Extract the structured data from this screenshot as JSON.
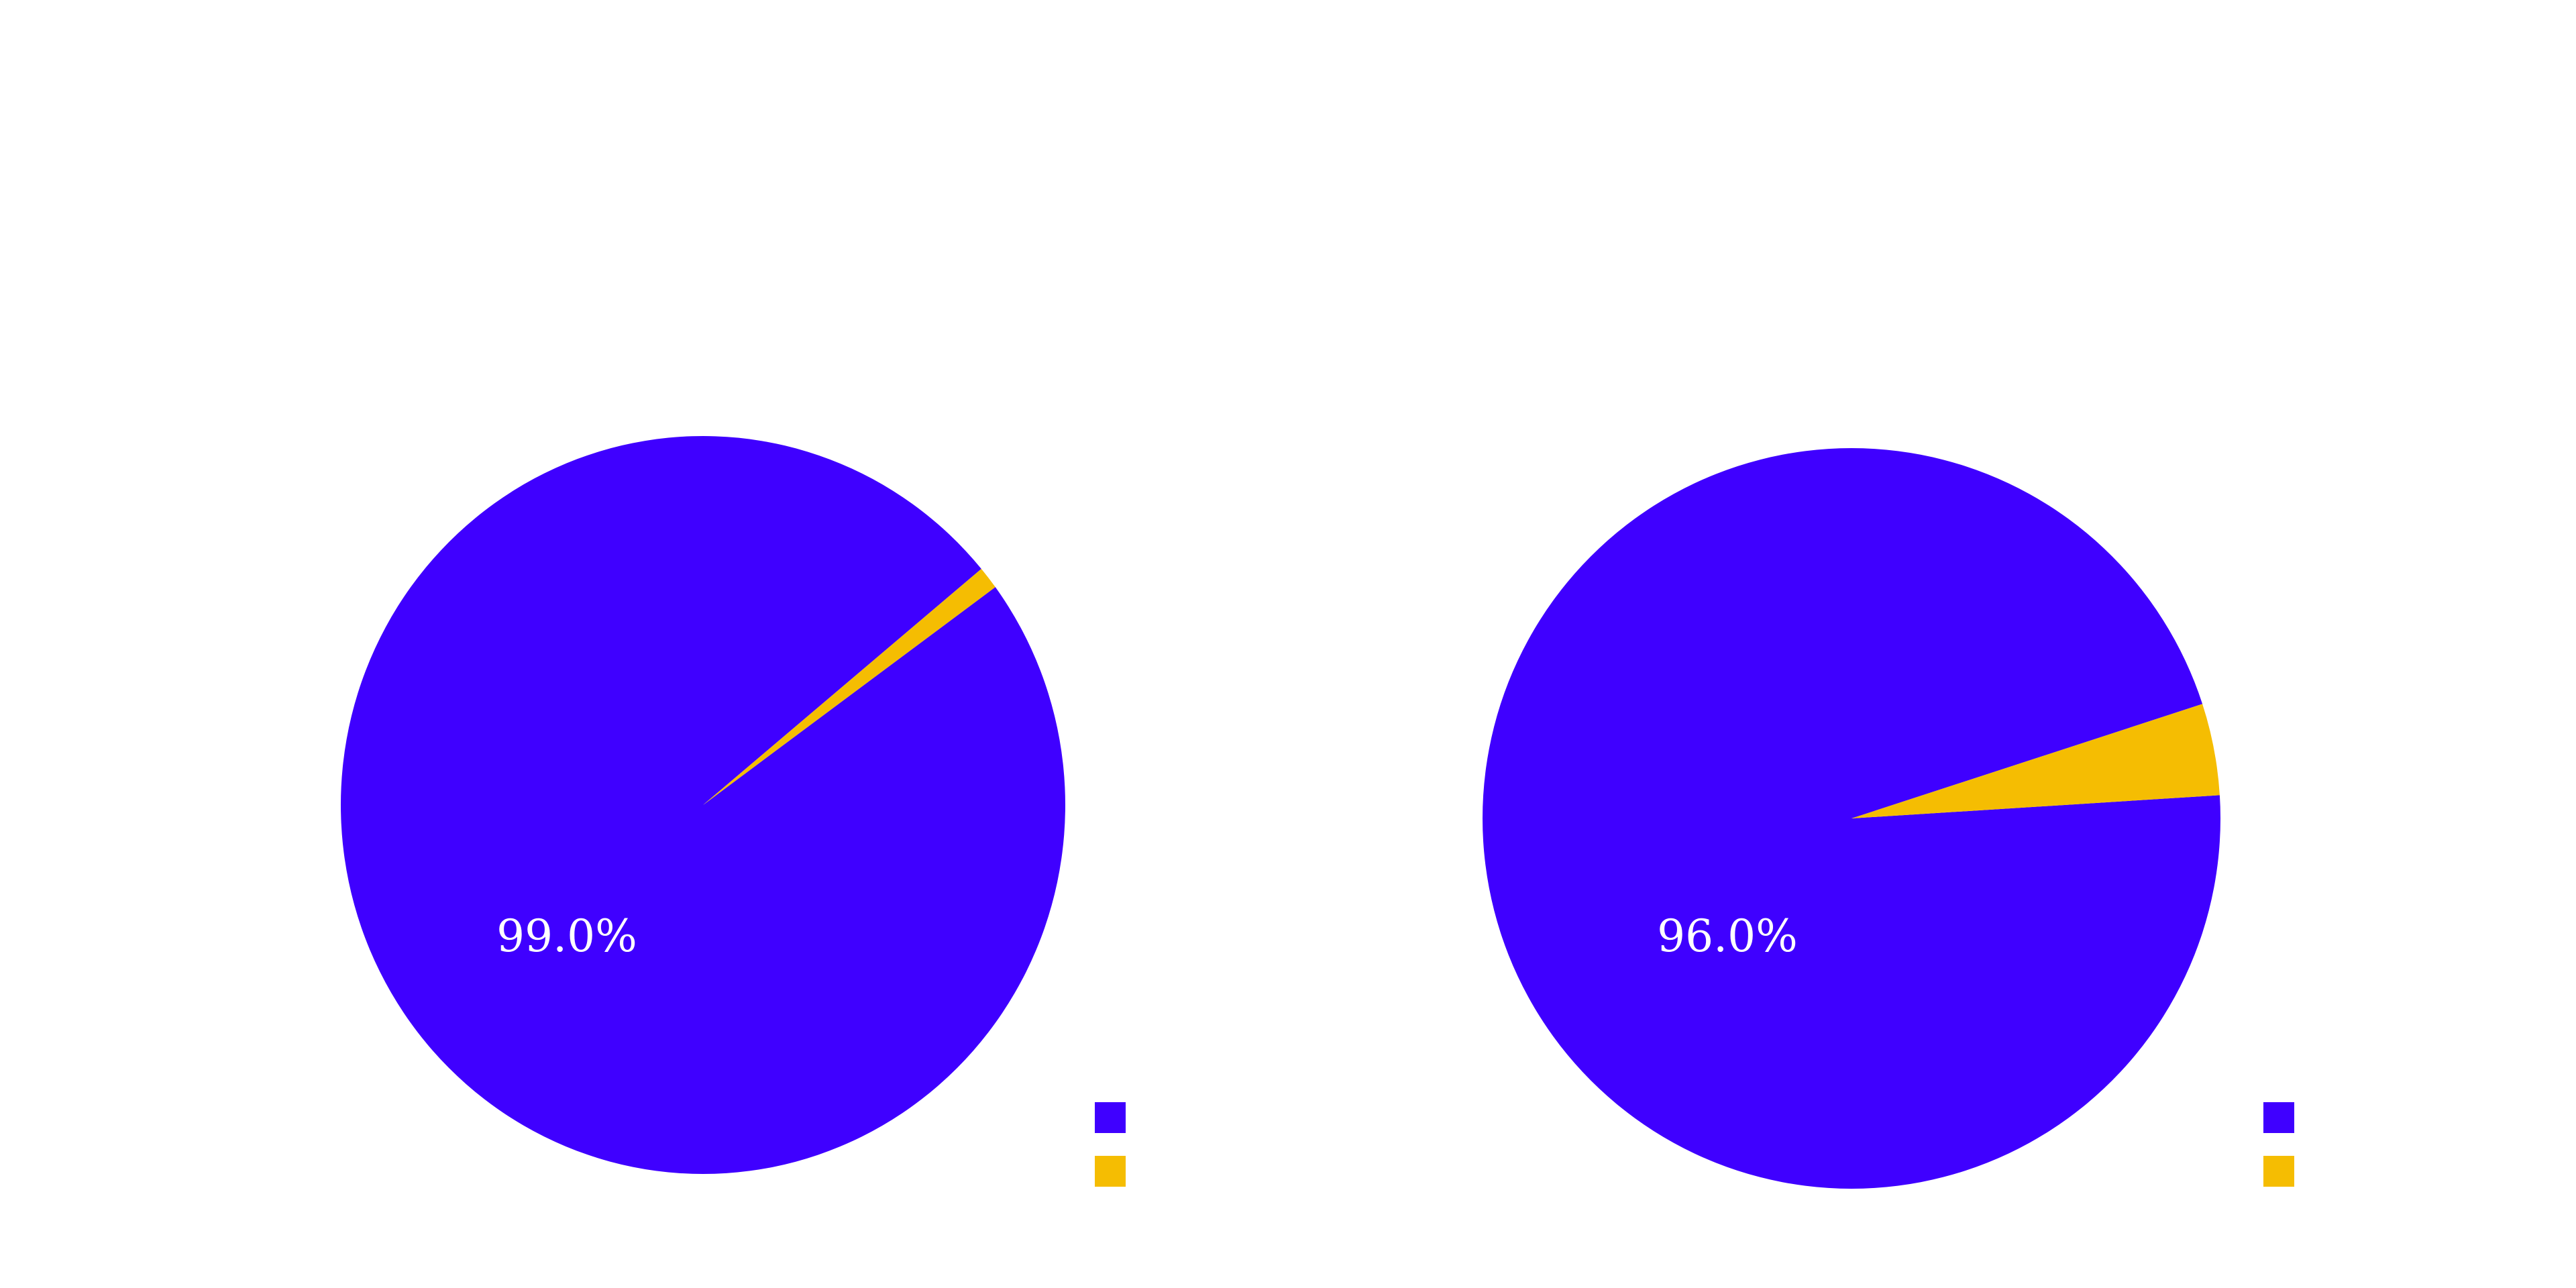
{
  "colors": {
    "primary": "#3f00ff",
    "secondary": "#f5bd02",
    "background": "#ffffff"
  },
  "chart_data": [
    {
      "type": "pie",
      "slices": [
        {
          "value": 99.0,
          "color": "#3f00ff",
          "label": "99.0%"
        },
        {
          "value": 1.0,
          "color": "#f5bd02",
          "label": ""
        }
      ],
      "legend": {
        "placement": "bottom-right",
        "entries": [
          "",
          ""
        ]
      }
    },
    {
      "type": "pie",
      "slices": [
        {
          "value": 96.0,
          "color": "#3f00ff",
          "label": "96.0%"
        },
        {
          "value": 4.0,
          "color": "#f5bd02",
          "label": ""
        }
      ],
      "legend": {
        "placement": "bottom-right",
        "entries": [
          "",
          ""
        ]
      }
    }
  ]
}
